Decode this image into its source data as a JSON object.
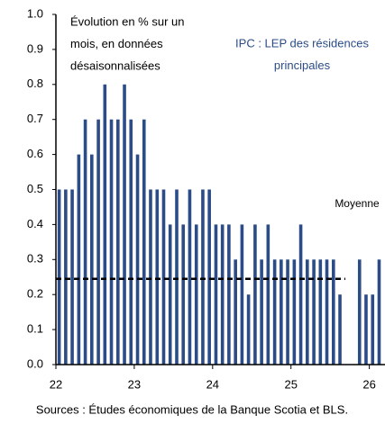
{
  "chart_data": {
    "type": "bar",
    "annotation_lines": [
      "Évolution en % sur un",
      "mois, en données",
      "désaisonnalisées"
    ],
    "series": [
      {
        "name_lines": [
          "IPC : LEP des résidences",
          "principales"
        ],
        "color": "#2b4c86",
        "x": [
          22.042,
          22.125,
          22.208,
          22.292,
          22.375,
          22.458,
          22.542,
          22.625,
          22.708,
          22.792,
          22.875,
          22.958,
          23.042,
          23.125,
          23.208,
          23.292,
          23.375,
          23.458,
          23.542,
          23.625,
          23.708,
          23.792,
          23.875,
          23.958,
          24.042,
          24.125,
          24.208,
          24.292,
          24.375,
          24.458,
          24.542,
          24.625,
          24.708,
          24.792,
          24.875,
          24.958,
          25.042,
          25.125,
          25.208,
          25.292,
          25.375,
          25.458,
          25.542,
          25.625,
          25.708,
          25.792,
          25.875,
          25.958,
          26.042,
          26.125
        ],
        "values": [
          0.5,
          0.5,
          0.5,
          0.6,
          0.7,
          0.6,
          0.7,
          0.8,
          0.7,
          0.7,
          0.8,
          0.7,
          0.6,
          0.7,
          0.5,
          0.5,
          0.5,
          0.4,
          0.5,
          0.4,
          0.5,
          0.4,
          0.5,
          0.5,
          0.4,
          0.4,
          0.4,
          0.3,
          0.4,
          0.2,
          0.4,
          0.3,
          0.4,
          0.3,
          0.3,
          0.3,
          0.3,
          0.4,
          0.3,
          0.3,
          0.3,
          0.3,
          0.3,
          0.2,
          null,
          null,
          0.3,
          0.2,
          0.2,
          0.3
        ]
      }
    ],
    "average": {
      "label": "Moyenne",
      "value": 0.245
    },
    "xlim": [
      22,
      26.2
    ],
    "xticks": [
      22,
      23,
      24,
      25,
      26
    ],
    "ylim": [
      0,
      1
    ],
    "yticks": [
      {
        "value": 0,
        "label": "0.0"
      },
      0.1,
      0.2,
      0.3,
      0.4,
      0.5,
      0.6,
      0.7,
      0.8,
      0.9,
      {
        "value": 1,
        "label": "1.0"
      }
    ],
    "source": "Sources : Études économiques de la Banque Scotia et  BLS."
  }
}
